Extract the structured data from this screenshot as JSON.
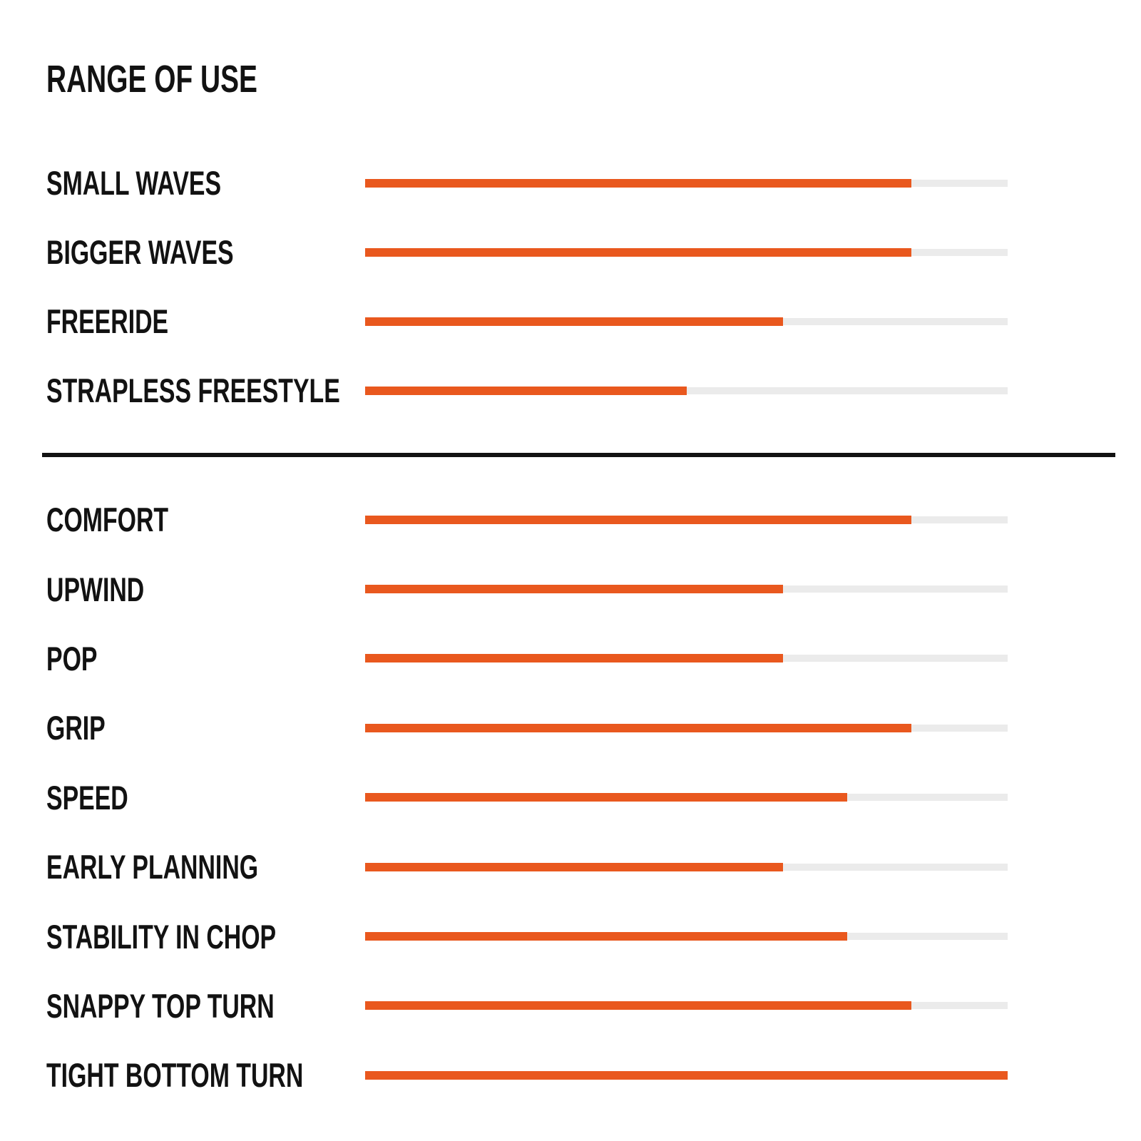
{
  "page": {
    "title": "RANGE OF USE"
  },
  "colors": {
    "background": "#FFFFFF",
    "text": "#121212",
    "divider": "#121212",
    "bar_fill": "#E9581E",
    "bar_track": "#EBEBEB"
  },
  "chart_data": {
    "type": "bar",
    "orientation": "horizontal",
    "title": "RANGE OF USE",
    "value_scale": [
      0,
      100
    ],
    "grid": false,
    "legend": false,
    "sections": [
      {
        "id": "range-of-use",
        "items": [
          {
            "label": "SMALL WAVES",
            "value": 85
          },
          {
            "label": "BIGGER WAVES",
            "value": 85
          },
          {
            "label": "FREERIDE",
            "value": 65
          },
          {
            "label": "STRAPLESS FREESTYLE",
            "value": 50
          }
        ]
      },
      {
        "id": "board-characteristics",
        "items": [
          {
            "label": "COMFORT",
            "value": 85
          },
          {
            "label": "UPWIND",
            "value": 65
          },
          {
            "label": "POP",
            "value": 65
          },
          {
            "label": "GRIP",
            "value": 85
          },
          {
            "label": "SPEED",
            "value": 75
          },
          {
            "label": "EARLY PLANNING",
            "value": 65
          },
          {
            "label": "STABILITY IN CHOP",
            "value": 75
          },
          {
            "label": "SNAPPY TOP TURN",
            "value": 85
          },
          {
            "label": "TIGHT BOTTOM TURN",
            "value": 100
          }
        ]
      }
    ]
  }
}
